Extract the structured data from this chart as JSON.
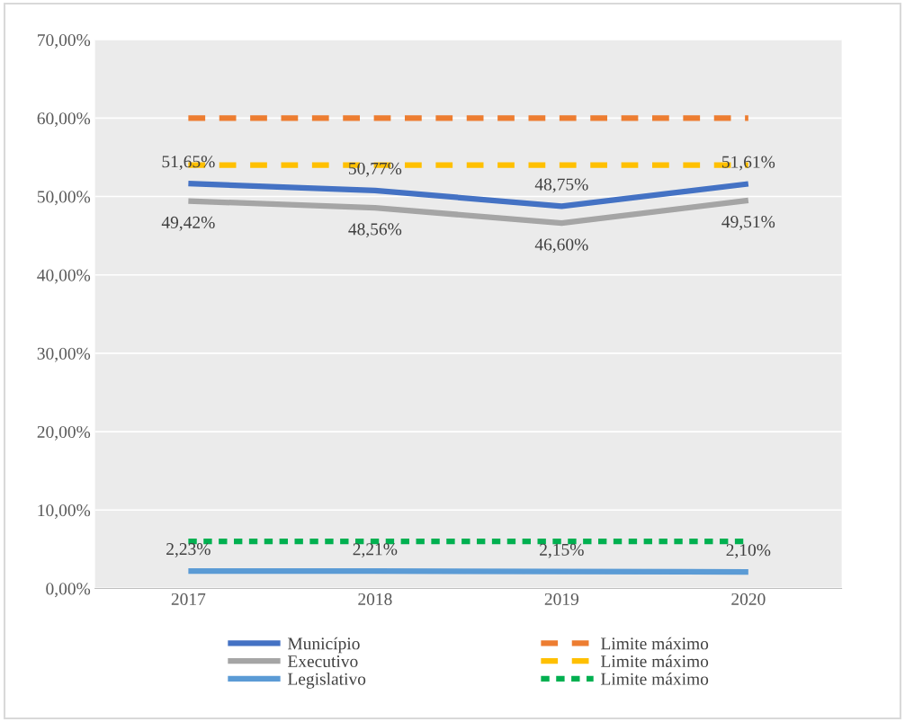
{
  "chart_data": {
    "type": "line",
    "categories": [
      "2017",
      "2018",
      "2019",
      "2020"
    ],
    "series": [
      {
        "name": "Município",
        "color": "#4472c4",
        "values": [
          51.65,
          50.77,
          48.75,
          51.61
        ],
        "value_labels": [
          "51,65%",
          "50,77%",
          "48,75%",
          "51,61%"
        ],
        "line_style": "solid"
      },
      {
        "name": "Executivo",
        "color": "#a5a5a5",
        "values": [
          49.42,
          48.56,
          46.6,
          49.51
        ],
        "value_labels": [
          "49,42%",
          "48,56%",
          "46,60%",
          "49,51%"
        ],
        "line_style": "solid"
      },
      {
        "name": "Legislativo",
        "color": "#5b9bd5",
        "values": [
          2.23,
          2.21,
          2.15,
          2.1
        ],
        "value_labels": [
          "2,23%",
          "2,21%",
          "2,15%",
          "2,10%"
        ],
        "line_style": "solid"
      },
      {
        "name": "Limite máximo",
        "color": "#ed7d31",
        "values": [
          60,
          60,
          60,
          60
        ],
        "line_style": "dashed"
      },
      {
        "name": "Limite máximo",
        "color": "#ffc000",
        "values": [
          54,
          54,
          54,
          54
        ],
        "line_style": "dashed"
      },
      {
        "name": "Limite máximo",
        "color": "#00b050",
        "values": [
          6,
          6,
          6,
          6
        ],
        "line_style": "dotted"
      }
    ],
    "ylim": [
      0,
      70
    ],
    "yticks": [
      {
        "value": 0,
        "label": "0,00%"
      },
      {
        "value": 10,
        "label": "10,00%"
      },
      {
        "value": 20,
        "label": "20,00%"
      },
      {
        "value": 30,
        "label": "30,00%"
      },
      {
        "value": 40,
        "label": "40,00%"
      },
      {
        "value": 50,
        "label": "50,00%"
      },
      {
        "value": 60,
        "label": "60,00%"
      },
      {
        "value": 70,
        "label": "70,00%"
      }
    ],
    "grid": "y",
    "legend": "bottom",
    "marker": "none"
  }
}
